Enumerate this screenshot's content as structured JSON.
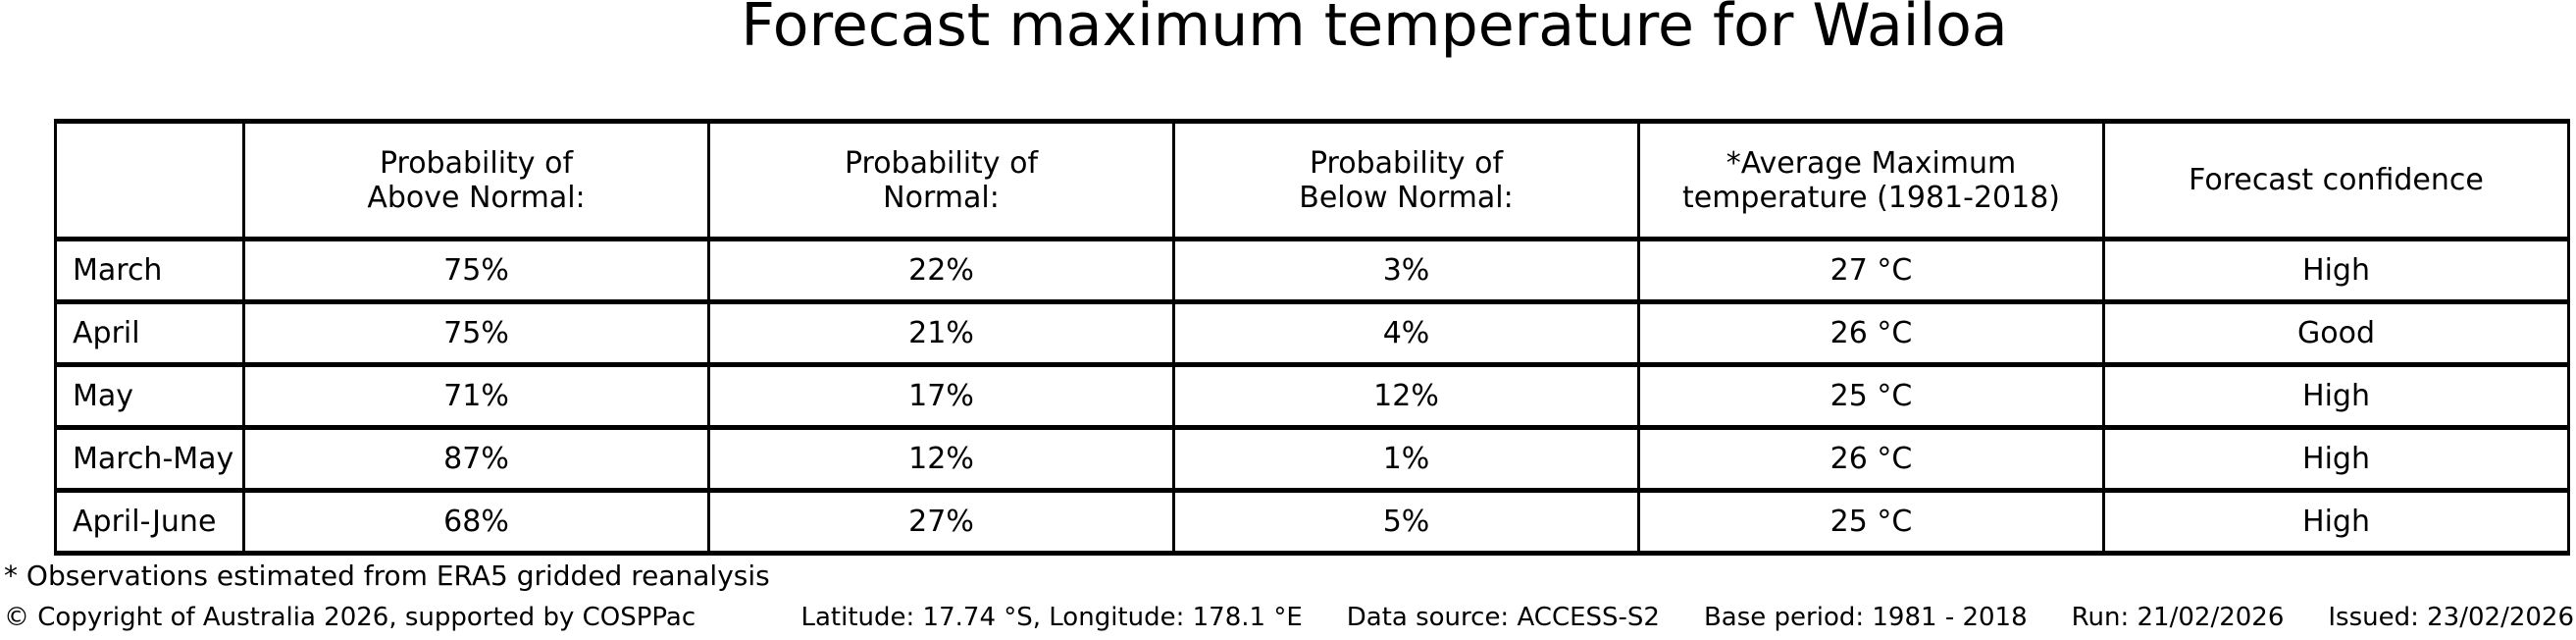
{
  "title": "Forecast maximum temperature for Wailoa",
  "table": {
    "col_headers": [
      "Probability of\nAbove Normal:",
      "Probability of\nNormal:",
      "Probability of\nBelow Normal:",
      "*Average Maximum\ntemperature (1981-2018)",
      "Forecast confidence"
    ],
    "rows": [
      {
        "label": "March",
        "cells": [
          "75%",
          "22%",
          "3%",
          "27 °C",
          "High"
        ]
      },
      {
        "label": "April",
        "cells": [
          "75%",
          "21%",
          "4%",
          "26 °C",
          "Good"
        ]
      },
      {
        "label": "May",
        "cells": [
          "71%",
          "17%",
          "12%",
          "25 °C",
          "High"
        ]
      },
      {
        "label": "March-May",
        "cells": [
          "87%",
          "12%",
          "1%",
          "26 °C",
          "High"
        ]
      },
      {
        "label": "April-June",
        "cells": [
          "68%",
          "27%",
          "5%",
          "25 °C",
          "High"
        ]
      }
    ]
  },
  "footnote": "* Observations estimated from ERA5 gridded reanalysis",
  "footer": {
    "copyright": "© Copyright of Australia 2026, supported by COSPPac",
    "location": "Latitude: 17.74 °S, Longitude: 178.1 °E",
    "data_source": "Data source: ACCESS-S2",
    "base_period": "Base period: 1981 - 2018",
    "run": "Run: 21/02/2026",
    "issued": "Issued: 23/02/2026"
  },
  "colors": {
    "text": "#000000",
    "background": "#ffffff",
    "border": "#000000"
  },
  "chart_data": {
    "type": "table",
    "title": "Forecast maximum temperature for Wailoa",
    "columns": [
      "",
      "Probability of Above Normal:",
      "Probability of Normal:",
      "Probability of Below Normal:",
      "*Average Maximum temperature (1981-2018)",
      "Forecast confidence"
    ],
    "rows": [
      [
        "March",
        "75%",
        "22%",
        "3%",
        "27 °C",
        "High"
      ],
      [
        "April",
        "75%",
        "21%",
        "4%",
        "26 °C",
        "Good"
      ],
      [
        "May",
        "71%",
        "17%",
        "12%",
        "25 °C",
        "High"
      ],
      [
        "March-May",
        "87%",
        "12%",
        "1%",
        "26 °C",
        "High"
      ],
      [
        "April-June",
        "68%",
        "27%",
        "5%",
        "25 °C",
        "High"
      ]
    ],
    "probability_above_normal_pct": [
      75,
      75,
      71,
      87,
      68
    ],
    "probability_normal_pct": [
      22,
      21,
      17,
      12,
      27
    ],
    "probability_below_normal_pct": [
      3,
      4,
      12,
      1,
      5
    ],
    "average_max_temperature_c": [
      27,
      26,
      25,
      26,
      25
    ],
    "forecast_confidence": [
      "High",
      "Good",
      "High",
      "High",
      "High"
    ],
    "periods": [
      "March",
      "April",
      "May",
      "March-May",
      "April-June"
    ],
    "footnote": "* Observations estimated from ERA5 gridded reanalysis"
  }
}
